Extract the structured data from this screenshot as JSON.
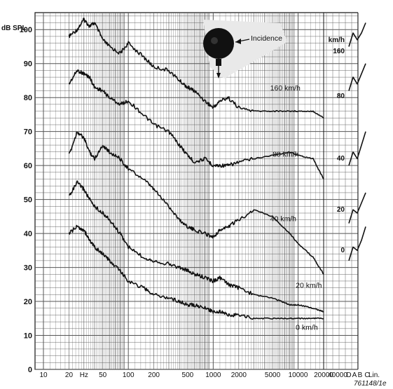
{
  "chart_data": {
    "type": "line",
    "ylabel": "dB SPL",
    "ylim": [
      0,
      105
    ],
    "y_ticks": [
      "0",
      "10",
      "20",
      "30",
      "40",
      "50",
      "60",
      "70",
      "80",
      "90",
      "100"
    ],
    "x_scale": "log",
    "xlim": [
      10,
      20000
    ],
    "x_ticks": [
      {
        "v": 10,
        "label": "10"
      },
      {
        "v": 20,
        "label": "20"
      },
      {
        "v": 30,
        "label": "Hz"
      },
      {
        "v": 50,
        "label": "50"
      },
      {
        "v": 100,
        "label": "100"
      },
      {
        "v": 200,
        "label": "200"
      },
      {
        "v": 500,
        "label": "500"
      },
      {
        "v": 1000,
        "label": "1000"
      },
      {
        "v": 2000,
        "label": "2000"
      },
      {
        "v": 5000,
        "label": "5000"
      },
      {
        "v": 10000,
        "label": "10000"
      },
      {
        "v": 20000,
        "label": "20000"
      }
    ],
    "extra_x_labels": [
      "40000",
      "D",
      "A",
      "B",
      "C",
      "Lin."
    ],
    "series": [
      {
        "name": "160 km/h",
        "x": [
          20,
          25,
          30,
          35,
          40,
          50,
          60,
          80,
          100,
          150,
          200,
          300,
          400,
          500,
          600,
          800,
          1000,
          1200,
          1500,
          2000,
          3000,
          5000,
          8000,
          10000,
          15000,
          20000
        ],
        "y": [
          98,
          100,
          103,
          101,
          102,
          97,
          95,
          93,
          96,
          92,
          89,
          88,
          85,
          83,
          82,
          79,
          77,
          79,
          80,
          77,
          76,
          76,
          76,
          76,
          76,
          74
        ]
      },
      {
        "name": "80 km/h",
        "x": [
          20,
          25,
          30,
          35,
          40,
          50,
          60,
          80,
          100,
          150,
          200,
          300,
          400,
          500,
          600,
          800,
          1000,
          1200,
          1500,
          2000,
          3000,
          5000,
          8000,
          10000,
          15000,
          20000
        ],
        "y": [
          84,
          88,
          87,
          86,
          83,
          82,
          80,
          78,
          79,
          75,
          72,
          70,
          66,
          63,
          61,
          62,
          60,
          60,
          60,
          61,
          62,
          63,
          64,
          63,
          62,
          56
        ]
      },
      {
        "name": "40 km/h",
        "x": [
          20,
          25,
          30,
          35,
          40,
          50,
          60,
          80,
          100,
          150,
          200,
          300,
          400,
          500,
          600,
          800,
          1000,
          1200,
          1500,
          2000,
          3000,
          5000,
          8000,
          10000,
          15000,
          20000
        ],
        "y": [
          63,
          70,
          68,
          64,
          62,
          66,
          64,
          62,
          59,
          56,
          53,
          48,
          44,
          42,
          41,
          40,
          39,
          41,
          42,
          44,
          47,
          45,
          40,
          37,
          33,
          28
        ]
      },
      {
        "name": "20 km/h",
        "x": [
          20,
          25,
          30,
          35,
          40,
          50,
          60,
          80,
          100,
          150,
          200,
          300,
          400,
          500,
          600,
          800,
          1000,
          1200,
          1500,
          2000,
          3000,
          5000,
          8000,
          10000,
          15000,
          20000
        ],
        "y": [
          51,
          55,
          53,
          50,
          48,
          46,
          44,
          40,
          36,
          33,
          32,
          31,
          30,
          29,
          28,
          27,
          26,
          27,
          25,
          24,
          22,
          21,
          19,
          19,
          18,
          17
        ]
      },
      {
        "name": "0 km/h",
        "x": [
          20,
          25,
          30,
          35,
          40,
          50,
          60,
          80,
          100,
          150,
          200,
          300,
          400,
          500,
          600,
          800,
          1000,
          1200,
          1500,
          2000,
          3000,
          5000,
          8000,
          10000,
          15000,
          20000
        ],
        "y": [
          40,
          42,
          41,
          38,
          36,
          34,
          32,
          29,
          26,
          24,
          22,
          21,
          20,
          19,
          19,
          18,
          17,
          17,
          16,
          16,
          15,
          15,
          15,
          15,
          15,
          15
        ]
      }
    ],
    "annotation": "Incidence",
    "right_panel": {
      "labels": [
        "km/h",
        "160",
        "80",
        "40",
        "20",
        "0"
      ],
      "label_values": [
        160,
        80,
        40,
        20,
        0
      ],
      "label_y": [
        null,
        103,
        84,
        63,
        51,
        38
      ],
      "columns": [
        "D",
        "A",
        "B",
        "C",
        "Lin."
      ],
      "levels": {
        "160": [
          95,
          99,
          97,
          99,
          102
        ],
        "80": [
          82,
          86,
          84,
          87,
          90
        ],
        "40": [
          60,
          64,
          62,
          66,
          70
        ],
        "20": [
          43,
          47,
          46,
          49,
          52
        ],
        "0": [
          32,
          36,
          35,
          38,
          42
        ]
      }
    },
    "reference_code": "761148/1e",
    "grid": true
  }
}
